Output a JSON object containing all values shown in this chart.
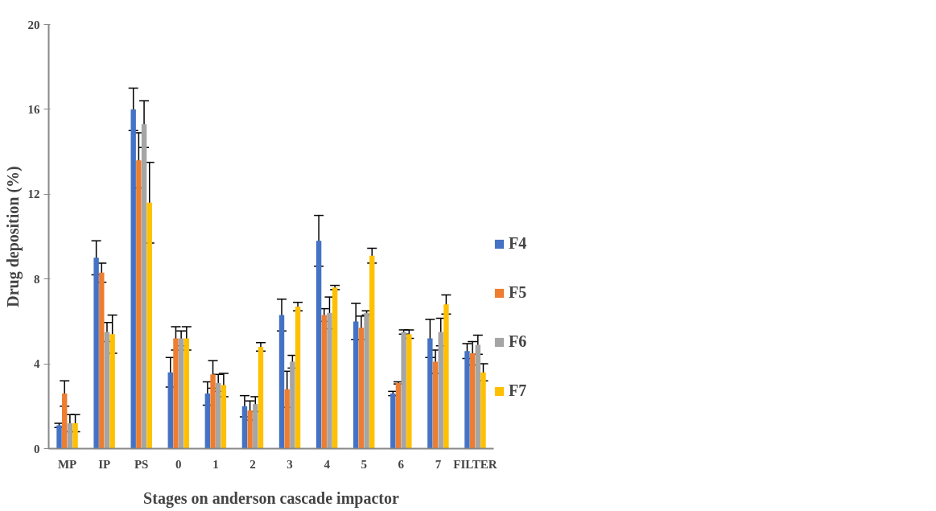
{
  "chart_data": {
    "type": "bar",
    "xlabel": "Stages on anderson cascade impactor",
    "ylabel": "Drug deposition (%)",
    "categories": [
      "MP",
      "IP",
      "PS",
      "0",
      "1",
      "2",
      "3",
      "4",
      "5",
      "6",
      "7",
      "FILTER"
    ],
    "series": [
      {
        "name": "F4",
        "color": "#4472c4",
        "values": [
          1.1,
          9.0,
          16.0,
          3.6,
          2.6,
          2.0,
          6.3,
          9.8,
          6.0,
          2.6,
          5.2,
          4.6
        ],
        "errors": [
          0.1,
          0.8,
          1.0,
          0.7,
          0.55,
          0.5,
          0.75,
          1.2,
          0.85,
          0.1,
          0.9,
          0.35
        ]
      },
      {
        "name": "F5",
        "color": "#ed7d31",
        "values": [
          2.6,
          8.3,
          13.6,
          5.2,
          3.5,
          1.8,
          2.8,
          6.3,
          5.7,
          3.1,
          4.1,
          4.5
        ],
        "errors": [
          0.6,
          0.45,
          1.3,
          0.55,
          0.65,
          0.45,
          0.85,
          0.3,
          0.55,
          0.05,
          0.55,
          0.55
        ]
      },
      {
        "name": "F6",
        "color": "#a5a5a5",
        "values": [
          1.2,
          5.5,
          15.3,
          5.2,
          3.1,
          2.1,
          4.1,
          6.4,
          6.4,
          5.5,
          5.5,
          4.9
        ],
        "errors": [
          0.4,
          0.45,
          1.1,
          0.35,
          0.4,
          0.35,
          0.3,
          0.75,
          0.1,
          0.1,
          0.65,
          0.45
        ]
      },
      {
        "name": "F7",
        "color": "#ffc000",
        "values": [
          1.2,
          5.4,
          11.6,
          5.2,
          3.0,
          4.8,
          6.7,
          7.6,
          9.1,
          5.4,
          6.8,
          3.6
        ],
        "errors": [
          0.4,
          0.9,
          1.9,
          0.55,
          0.55,
          0.2,
          0.2,
          0.1,
          0.35,
          0.2,
          0.45,
          0.4
        ]
      }
    ],
    "ylim": [
      0,
      20
    ],
    "yticks": [
      0,
      4,
      8,
      12,
      16,
      20
    ],
    "grid": false,
    "legend": "right"
  }
}
